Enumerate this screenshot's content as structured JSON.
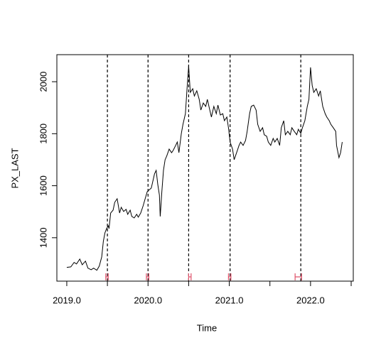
{
  "chart_data": {
    "type": "line",
    "ylabel": "PX_LAST",
    "xlabel": "Time",
    "xlim": [
      2018.878,
      2022.526
    ],
    "ylim": [
      1233,
      2104
    ],
    "xticks": [
      {
        "value": 2019,
        "label": "2019.0"
      },
      {
        "value": 2020,
        "label": "2020.0"
      },
      {
        "value": 2021,
        "label": "2021.0"
      },
      {
        "value": 2022,
        "label": "2022.0"
      }
    ],
    "xminorticks": [
      2019.5,
      2020.5,
      2021.5,
      2022.5
    ],
    "yticks": [
      1400,
      1600,
      1800,
      2000
    ],
    "color": "#000000",
    "breakpoints": [
      2019.5,
      2020.0,
      2020.5,
      2021.01,
      2021.88
    ],
    "intervals": [
      [
        2019.48,
        2019.51
      ],
      [
        2019.98,
        2020.01
      ],
      [
        2020.5,
        2020.53
      ],
      [
        2020.99,
        2021.02
      ],
      [
        2021.81,
        2021.89
      ]
    ],
    "interval_color": "#DF536B",
    "x": [
      2019.0,
      2019.05,
      2019.09,
      2019.12,
      2019.16,
      2019.19,
      2019.23,
      2019.26,
      2019.3,
      2019.33,
      2019.37,
      2019.4,
      2019.43,
      2019.45,
      2019.47,
      2019.49,
      2019.51,
      2019.52,
      2019.54,
      2019.57,
      2019.59,
      2019.62,
      2019.65,
      2019.67,
      2019.7,
      2019.73,
      2019.75,
      2019.78,
      2019.8,
      2019.83,
      2019.86,
      2019.88,
      2019.91,
      2019.94,
      2019.96,
      2019.99,
      2020.01,
      2020.04,
      2020.07,
      2020.08,
      2020.1,
      2020.12,
      2020.14,
      2020.15,
      2020.17,
      2020.19,
      2020.21,
      2020.23,
      2020.26,
      2020.29,
      2020.31,
      2020.34,
      2020.36,
      2020.38,
      2020.41,
      2020.43,
      2020.46,
      2020.48,
      2020.5,
      2020.52,
      2020.55,
      2020.57,
      2020.6,
      2020.63,
      2020.65,
      2020.68,
      2020.71,
      2020.73,
      2020.76,
      2020.78,
      2020.81,
      2020.84,
      2020.86,
      2020.89,
      2020.92,
      2020.94,
      2020.97,
      2020.99,
      2021.01,
      2021.04,
      2021.06,
      2021.09,
      2021.12,
      2021.14,
      2021.17,
      2021.2,
      2021.22,
      2021.25,
      2021.27,
      2021.3,
      2021.33,
      2021.35,
      2021.38,
      2021.41,
      2021.43,
      2021.46,
      2021.48,
      2021.51,
      2021.54,
      2021.56,
      2021.59,
      2021.62,
      2021.64,
      2021.67,
      2021.69,
      2021.72,
      2021.75,
      2021.77,
      2021.8,
      2021.83,
      2021.85,
      2021.88,
      2021.9,
      2021.93,
      2021.96,
      2021.98,
      2022.0,
      2022.02,
      2022.04,
      2022.07,
      2022.1,
      2022.12,
      2022.15,
      2022.18,
      2022.2,
      2022.23,
      2022.25,
      2022.28,
      2022.31,
      2022.32,
      2022.35,
      2022.37,
      2022.39
    ],
    "values": [
      1286,
      1288,
      1305,
      1299,
      1318,
      1296,
      1310,
      1283,
      1277,
      1283,
      1275,
      1291,
      1326,
      1386,
      1419,
      1435,
      1446,
      1435,
      1495,
      1506,
      1536,
      1550,
      1495,
      1517,
      1501,
      1509,
      1490,
      1506,
      1482,
      1476,
      1490,
      1479,
      1495,
      1523,
      1545,
      1577,
      1583,
      1591,
      1632,
      1646,
      1659,
      1605,
      1564,
      1482,
      1577,
      1659,
      1700,
      1714,
      1741,
      1727,
      1736,
      1755,
      1768,
      1727,
      1801,
      1836,
      1877,
      1973,
      2060,
      1959,
      1973,
      1945,
      1965,
      1932,
      1891,
      1918,
      1905,
      1932,
      1891,
      1864,
      1905,
      1877,
      1910,
      1872,
      1877,
      1850,
      1864,
      1823,
      1768,
      1741,
      1700,
      1727,
      1755,
      1768,
      1755,
      1774,
      1809,
      1877,
      1905,
      1910,
      1891,
      1836,
      1809,
      1823,
      1796,
      1790,
      1768,
      1755,
      1782,
      1768,
      1782,
      1755,
      1823,
      1850,
      1796,
      1809,
      1796,
      1823,
      1809,
      1796,
      1817,
      1801,
      1823,
      1850,
      1905,
      1932,
      2055,
      1986,
      1959,
      1973,
      1945,
      1965,
      1905,
      1877,
      1864,
      1850,
      1836,
      1823,
      1809,
      1755,
      1708,
      1727,
      1768
    ]
  }
}
